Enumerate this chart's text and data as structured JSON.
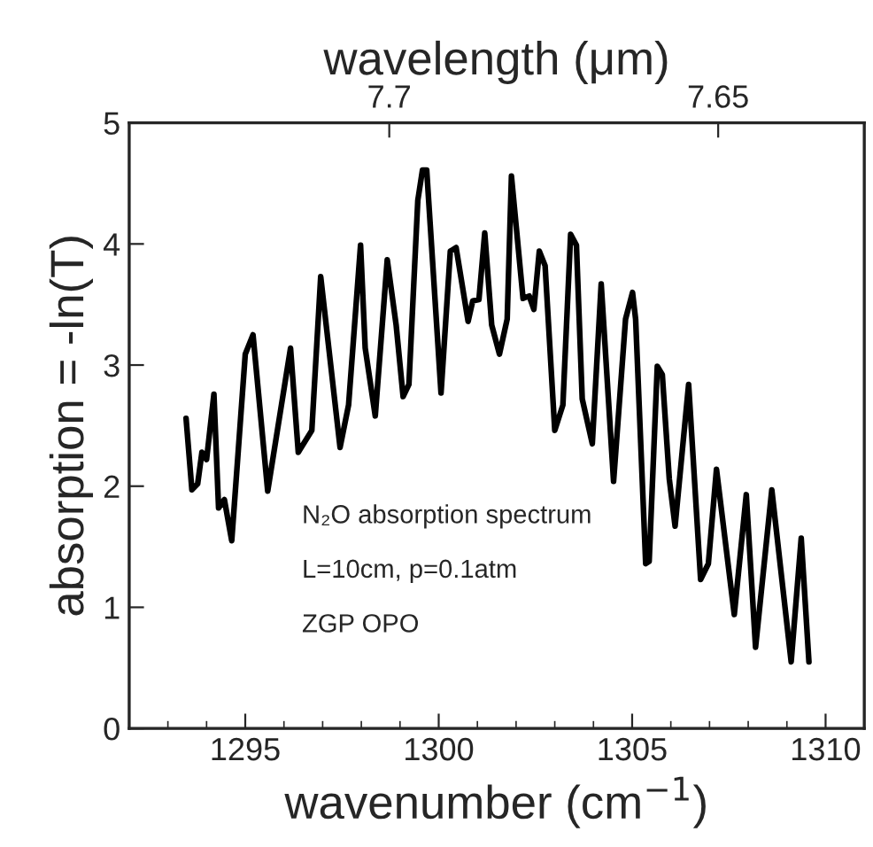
{
  "chart_data": {
    "type": "line",
    "xlabel": "wavenumber (cm$^{−1}$)",
    "ylabel": "absorption = -ln(T)",
    "x2label": "wavelength (μm)",
    "annotations": [
      "N₂O absorption spectrum",
      "L=10cm, p=0.1atm",
      "ZGP OPO"
    ],
    "xlim": [
      1292,
      1311
    ],
    "xticks": [
      1295,
      1300,
      1305,
      1310
    ],
    "x2lim": [
      7.74,
      7.628
    ],
    "x2ticks": [
      7.7,
      7.65
    ],
    "ylim": [
      0,
      5
    ],
    "yticks": [
      0,
      1,
      2,
      3,
      4,
      5
    ],
    "grid": false,
    "marker": "none",
    "line_style": "solid",
    "series": [
      {
        "color": "#000000",
        "x": [
          1293.47,
          1293.62,
          1293.77,
          1293.88,
          1294.0,
          1294.19,
          1294.31,
          1294.46,
          1294.65,
          1295.0,
          1295.2,
          1295.58,
          1296.17,
          1296.37,
          1296.72,
          1296.95,
          1297.45,
          1297.67,
          1297.98,
          1298.1,
          1298.36,
          1298.67,
          1298.9,
          1299.08,
          1299.23,
          1299.46,
          1299.58,
          1299.69,
          1300.06,
          1300.3,
          1300.45,
          1300.76,
          1300.88,
          1301.04,
          1301.19,
          1301.37,
          1301.57,
          1301.77,
          1301.88,
          1302.18,
          1302.34,
          1302.46,
          1302.6,
          1302.75,
          1303.0,
          1303.21,
          1303.41,
          1303.56,
          1303.71,
          1303.97,
          1304.2,
          1304.52,
          1304.83,
          1305.01,
          1305.09,
          1305.35,
          1305.44,
          1305.65,
          1305.78,
          1305.96,
          1306.11,
          1306.46,
          1306.77,
          1306.97,
          1307.18,
          1307.64,
          1307.95,
          1308.19,
          1308.61,
          1309.11,
          1309.37,
          1309.57
        ],
        "values": [
          2.56,
          1.97,
          2.02,
          2.28,
          2.22,
          2.76,
          1.82,
          1.89,
          1.55,
          3.09,
          3.25,
          1.96,
          3.14,
          2.28,
          2.46,
          3.73,
          2.32,
          2.67,
          3.99,
          3.14,
          2.58,
          3.87,
          3.33,
          2.74,
          2.84,
          4.36,
          4.61,
          4.61,
          2.77,
          3.94,
          3.97,
          3.36,
          3.53,
          3.54,
          4.09,
          3.33,
          3.09,
          3.38,
          4.56,
          3.55,
          3.57,
          3.46,
          3.94,
          3.82,
          2.46,
          2.67,
          4.08,
          3.99,
          2.72,
          2.35,
          3.67,
          2.04,
          3.38,
          3.6,
          3.38,
          1.36,
          1.38,
          2.99,
          2.92,
          2.06,
          1.67,
          2.84,
          1.23,
          1.36,
          2.14,
          0.94,
          1.93,
          0.67,
          1.97,
          0.55,
          1.57,
          0.55
        ]
      }
    ]
  }
}
